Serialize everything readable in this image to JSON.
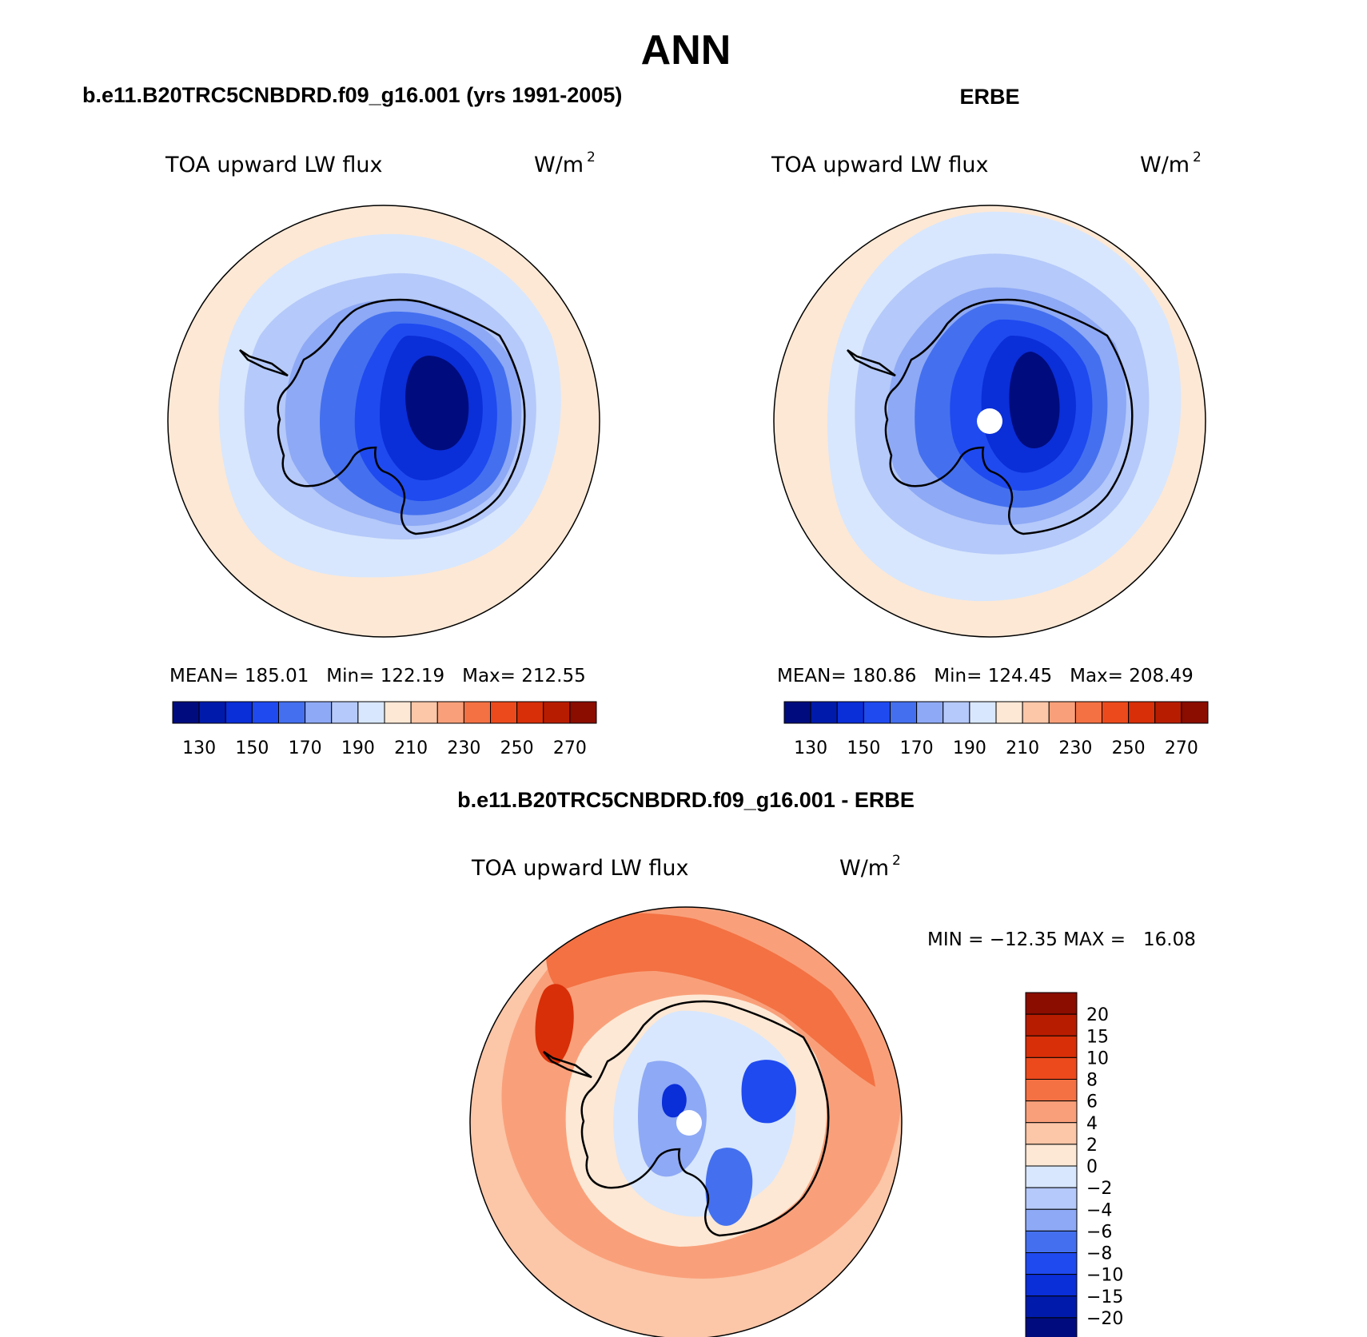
{
  "figure": {
    "season": "ANN",
    "colors": {
      "abs_scale": [
        "#000c7d",
        "#001bab",
        "#0a2ed8",
        "#1f4af0",
        "#4470ef",
        "#8ea9f5",
        "#b5c9fa",
        "#d8e7fd",
        "#fde8d5",
        "#fcc6a8",
        "#f9a07a",
        "#f37143",
        "#ec4a1c",
        "#d82f08",
        "#b81c00",
        "#8a0d00"
      ],
      "diff_scale": [
        "#000c7d",
        "#001bab",
        "#0a2ed8",
        "#1f4af0",
        "#4470ef",
        "#8ea9f5",
        "#b5c9fa",
        "#d8e7fd",
        "#fde8d5",
        "#fcc6a8",
        "#f9a07a",
        "#f37143",
        "#ec4a1c",
        "#d82f08",
        "#b81c00",
        "#8a0d00"
      ],
      "continent_outline": "#000000"
    }
  },
  "panels": {
    "model": {
      "heading": "b.e11.B20TRC5CNBDRD.f09_g16.001 (yrs 1991-2005)",
      "variable": "TOA upward LW flux",
      "units": "W/m",
      "units_exp": "2",
      "stats": "MEAN= 185.01   Min= 122.19   Max= 212.55",
      "colorbar_ticks": [
        "130",
        "150",
        "170",
        "190",
        "210",
        "230",
        "250",
        "270"
      ]
    },
    "obs": {
      "heading": "ERBE",
      "variable": "TOA upward LW flux",
      "units": "W/m",
      "units_exp": "2",
      "stats": "MEAN= 180.86   Min= 124.45   Max= 208.49",
      "colorbar_ticks": [
        "130",
        "150",
        "170",
        "190",
        "210",
        "230",
        "250",
        "270"
      ]
    },
    "diff": {
      "heading": "b.e11.B20TRC5CNBDRD.f09_g16.001 - ERBE",
      "variable": "TOA upward LW flux",
      "units": "W/m",
      "units_exp": "2",
      "stats": "MIN = −12.35 MAX =   16.08",
      "colorbar_ticks": [
        "20",
        "15",
        "10",
        "8",
        "6",
        "4",
        "2",
        "0",
        "−2",
        "−4",
        "−6",
        "−8",
        "−10",
        "−15",
        "−20"
      ]
    }
  }
}
